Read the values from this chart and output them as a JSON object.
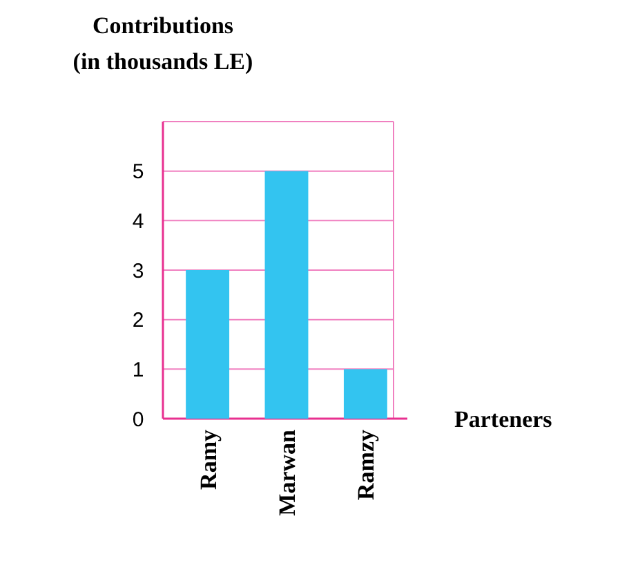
{
  "chart_data": {
    "type": "bar",
    "ylabel": "Contributions (in thousands LE)",
    "xlabel": "Parteners",
    "categories": [
      "Ramy",
      "Marwan",
      "Ramzy"
    ],
    "values": [
      3,
      5,
      1
    ],
    "color": "#33c4f0",
    "ylim": [
      0,
      6
    ],
    "yticks": [
      0,
      1,
      2,
      3,
      4,
      5,
      {
        "value": 6,
        "label": null
      }
    ],
    "grid": "y"
  }
}
